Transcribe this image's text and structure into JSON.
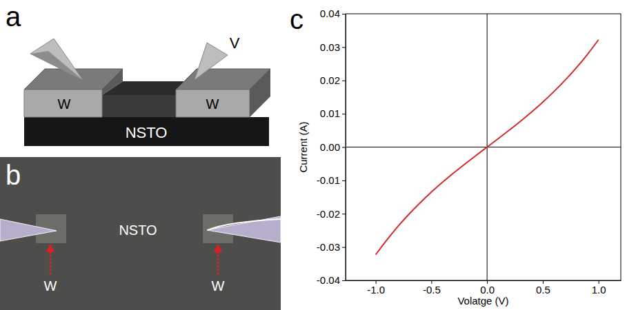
{
  "panel_letters": [
    "a",
    "b",
    "c"
  ],
  "panels": [
    {
      "type": "diagram",
      "texts": {
        "electrode_left": "W",
        "electrode_right": "W",
        "substrate": "NSTO",
        "probe": "V"
      }
    },
    {
      "type": "photo",
      "texts": {
        "substrate": "NSTO",
        "electrode_left": "W",
        "electrode_right": "W"
      }
    }
  ],
  "chart_data": {
    "type": "line",
    "x_label": "Volatge (V)",
    "y_label": "Current (A)",
    "x": [
      -1.0,
      -0.9,
      -0.8,
      -0.7,
      -0.6,
      -0.5,
      -0.4,
      -0.3,
      -0.2,
      -0.1,
      0.0,
      0.1,
      0.2,
      0.3,
      0.4,
      0.5,
      0.6,
      0.7,
      0.8,
      0.9,
      1.0
    ],
    "values": [
      -0.0323,
      -0.0279,
      -0.0238,
      -0.0201,
      -0.0167,
      -0.0135,
      -0.01055,
      -0.00777,
      -0.00511,
      -0.00253,
      0.0,
      0.00253,
      0.00511,
      0.00777,
      0.01055,
      0.0135,
      0.01666,
      0.02007,
      0.02376,
      0.0278,
      0.0322
    ],
    "color": "#d42a2a",
    "xlim": [
      -1.27,
      1.2
    ],
    "ylim": [
      -0.04,
      0.04
    ],
    "xticks": [
      {
        "value": -1.0,
        "label": "-1.0"
      },
      -0.5,
      {
        "value": 0.0,
        "label": "0.0"
      },
      0.5,
      {
        "value": 1.0,
        "label": "1.0"
      }
    ],
    "yticks": [
      -0.04,
      -0.03,
      -0.02,
      -0.01,
      {
        "value": 0.0,
        "label": "0.00"
      },
      0.01,
      0.02,
      0.03,
      0.04
    ],
    "grid": false
  }
}
